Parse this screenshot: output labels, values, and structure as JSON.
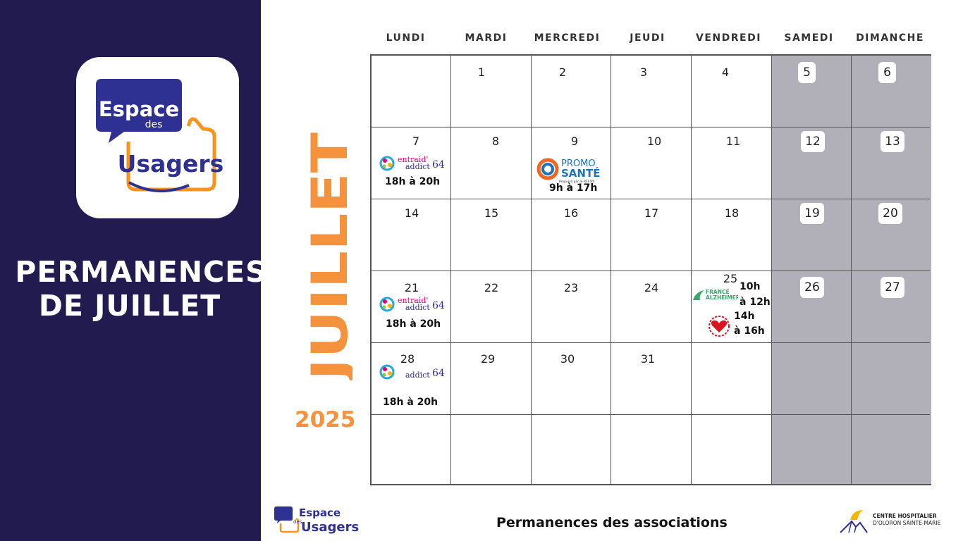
{
  "sidebar": {
    "logo": {
      "line1": "Espace",
      "line2": "des",
      "line3": "Usagers"
    },
    "title_line1": "PERMANENCES",
    "title_line2": "DE JUILLET"
  },
  "month": "JUILLET",
  "year": "2025",
  "weekdays": [
    "LUNDI",
    "MARDI",
    "MERCREDI",
    "JEUDI",
    "VENDREDI",
    "SAMEDI",
    "DIMANCHE"
  ],
  "days": [
    "1",
    "2",
    "3",
    "4",
    "5",
    "6",
    "7",
    "8",
    "9",
    "10",
    "11",
    "12",
    "13",
    "14",
    "15",
    "16",
    "17",
    "18",
    "19",
    "20",
    "21",
    "22",
    "23",
    "24",
    "25",
    "26",
    "27",
    "28",
    "29",
    "30",
    "31"
  ],
  "events": {
    "d7_time": "18h à 20h",
    "d9_time": "9h à 17h",
    "d21_time": "18h à 20h",
    "d25_time1a": "10h",
    "d25_time1b": "à 12h",
    "d25_time2a": "14h",
    "d25_time2b": "à 16h",
    "d28_time": "18h à 20h"
  },
  "logos": {
    "entraid": {
      "a": "entraid'",
      "b": "addict",
      "c": "64"
    },
    "promo": {
      "a": "PROMO",
      "b": "SANTÉ",
      "c": "Propulsé par le RÉFIPS"
    },
    "alzheimer": {
      "a": "FRANCE",
      "b": "ALZHEIMER"
    }
  },
  "footer": {
    "title": "Permanences des associations",
    "logo_line1": "Espace",
    "logo_line2": "des",
    "logo_line3": "Usagers",
    "hospital_line1": "CENTRE HOSPITALIER",
    "hospital_line2": "D'OLORON SAINTE-MARIE"
  },
  "colors": {
    "navy": "#221b50",
    "orange": "#f5923e",
    "weekend": "#b1afb8",
    "logo_blue": "#2e3192",
    "logo_orange": "#f7941d"
  }
}
